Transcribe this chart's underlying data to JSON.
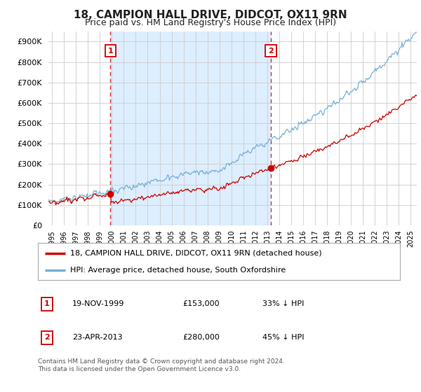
{
  "title": "18, CAMPION HALL DRIVE, DIDCOT, OX11 9RN",
  "subtitle": "Price paid vs. HM Land Registry's House Price Index (HPI)",
  "ytick_values": [
    0,
    100000,
    200000,
    300000,
    400000,
    500000,
    600000,
    700000,
    800000,
    900000
  ],
  "ylim": [
    0,
    950000
  ],
  "xlim_start": 1994.7,
  "xlim_end": 2025.5,
  "property_color": "#cc0000",
  "hpi_color": "#7ab0d4",
  "shade_color": "#ddeeff",
  "marker1_x": 1999.89,
  "marker1_y": 153000,
  "marker2_x": 2013.31,
  "marker2_y": 280000,
  "legend_property": "18, CAMPION HALL DRIVE, DIDCOT, OX11 9RN (detached house)",
  "legend_hpi": "HPI: Average price, detached house, South Oxfordshire",
  "table_row1_num": "1",
  "table_row1_date": "19-NOV-1999",
  "table_row1_price": "£153,000",
  "table_row1_hpi": "33% ↓ HPI",
  "table_row2_num": "2",
  "table_row2_date": "23-APR-2013",
  "table_row2_price": "£280,000",
  "table_row2_hpi": "45% ↓ HPI",
  "footnote": "Contains HM Land Registry data © Crown copyright and database right 2024.\nThis data is licensed under the Open Government Licence v3.0.",
  "background_color": "#ffffff",
  "grid_color": "#cccccc"
}
